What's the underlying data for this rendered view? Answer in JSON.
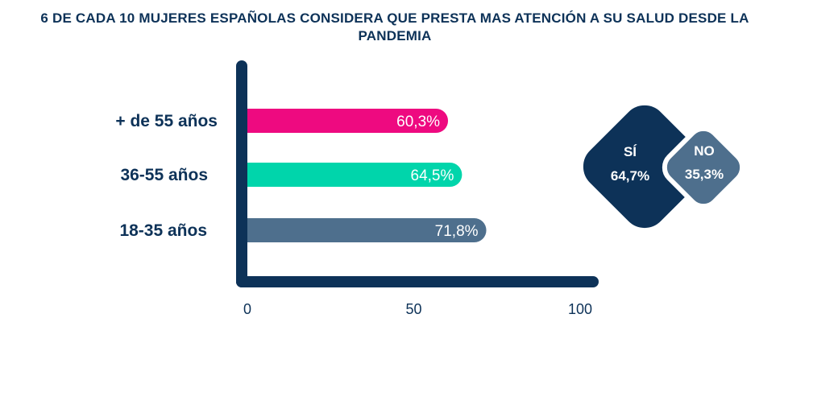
{
  "title": "6 DE CADA 10 MUJERES ESPAÑOLAS CONSIDERA QUE PRESTA MAS ATENCIÓN A SU SALUD DESDE LA PANDEMIA",
  "chart_data": [
    {
      "type": "bar",
      "orientation": "horizontal",
      "categories": [
        "+ de 55 años",
        "36-55 años",
        "18-35 años"
      ],
      "values": [
        60.3,
        64.5,
        71.8
      ],
      "value_labels": [
        "60,3%",
        "64,5%",
        "71,8%"
      ],
      "colors": [
        "#ee0a80",
        "#00d5ab",
        "#4e6f8d"
      ],
      "xlim": [
        0,
        100
      ],
      "xticks": [
        "0",
        "50",
        "100"
      ],
      "axis_color": "#0d3258",
      "grid": false
    },
    {
      "type": "pie",
      "style": "diamond",
      "slices": [
        {
          "label": "SÍ",
          "value": 64.7,
          "value_label": "64,7%",
          "color": "#0d3258"
        },
        {
          "label": "NO",
          "value": 35.3,
          "value_label": "35,3%",
          "color": "#4e6f8d"
        }
      ]
    }
  ]
}
